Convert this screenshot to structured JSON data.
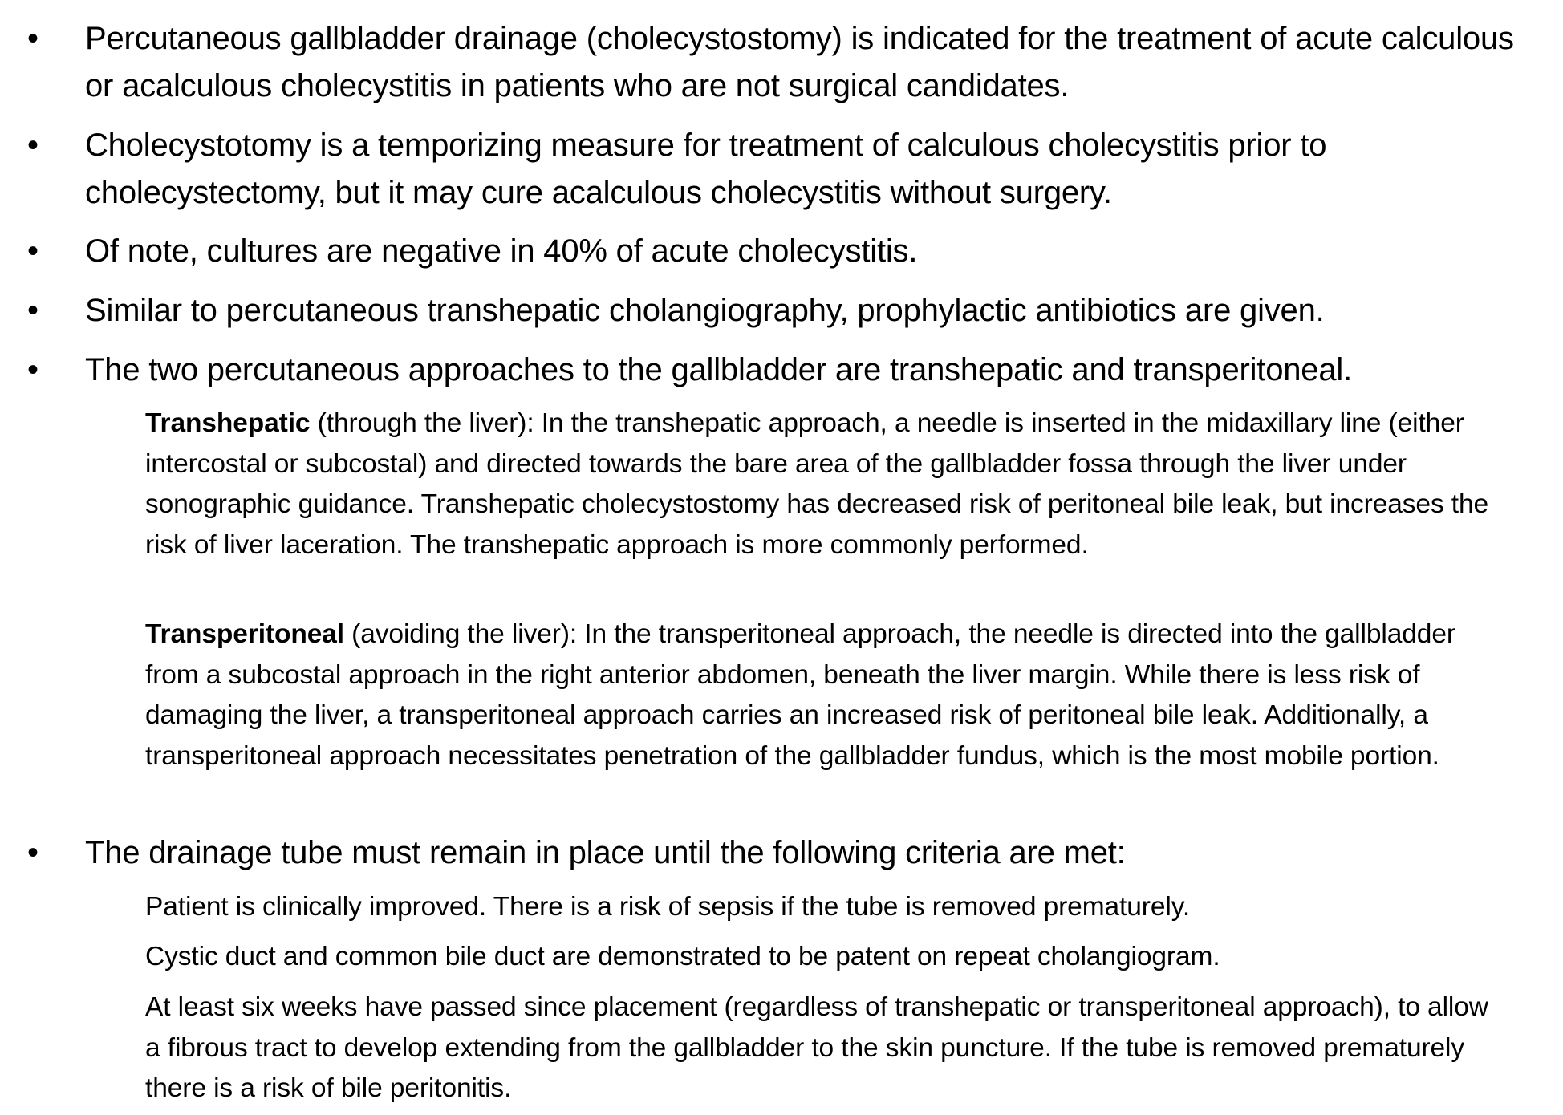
{
  "bullets": [
    "Percutaneous gallbladder drainage (cholecystostomy) is indicated for the treatment of acute calculous or acalculous cholecystitis in patients who are not surgical candidates.",
    "Cholecystotomy is a temporizing measure for treatment of calculous cholecystitis prior to cholecystectomy, but it may cure acalculous cholecystitis without surgery.",
    "Of note, cultures are negative in 40% of acute cholecystitis.",
    "Similar to percutaneous transhepatic cholangiography, prophylactic antibiotics are given.",
    "The two percutaneous approaches to the gallbladder are transhepatic and transperitoneal."
  ],
  "approaches": [
    {
      "term": "Transhepatic",
      "text": " (through the liver): In the transhepatic approach, a needle is inserted in the midaxillary line (either intercostal or subcostal) and directed towards the bare area of the gallbladder fossa through the liver under sonographic guidance. Transhepatic cholecystostomy has decreased risk of peritoneal bile leak, but increases the risk of liver laceration. The transhepatic approach is more commonly performed."
    },
    {
      "term": "Transperitoneal",
      "text": " (avoiding the liver): In the transperitoneal approach, the needle is directed into the gallbladder from a subcostal approach in the right anterior abdomen, beneath the liver margin. While there is less risk of damaging the liver, a transperitoneal approach carries an increased risk of peritoneal bile leak. Additionally, a transperitoneal approach necessitates penetration of the gallbladder fundus, which is the most mobile portion."
    }
  ],
  "removal": {
    "bullet": "The drainage tube must remain in place until the following criteria are met:",
    "criteria": [
      "Patient is clinically improved. There is a risk of sepsis if the tube is removed prematurely.",
      "Cystic duct and common bile duct are demonstrated to be patent on repeat cholangiogram.",
      "At least six weeks have passed since placement (regardless of transhepatic or transperitoneal approach), to allow a fibrous tract to develop extending from the gallbladder to the skin puncture. If the tube is removed prematurely there is a risk of bile peritonitis."
    ]
  },
  "bullet_glyph": "•"
}
